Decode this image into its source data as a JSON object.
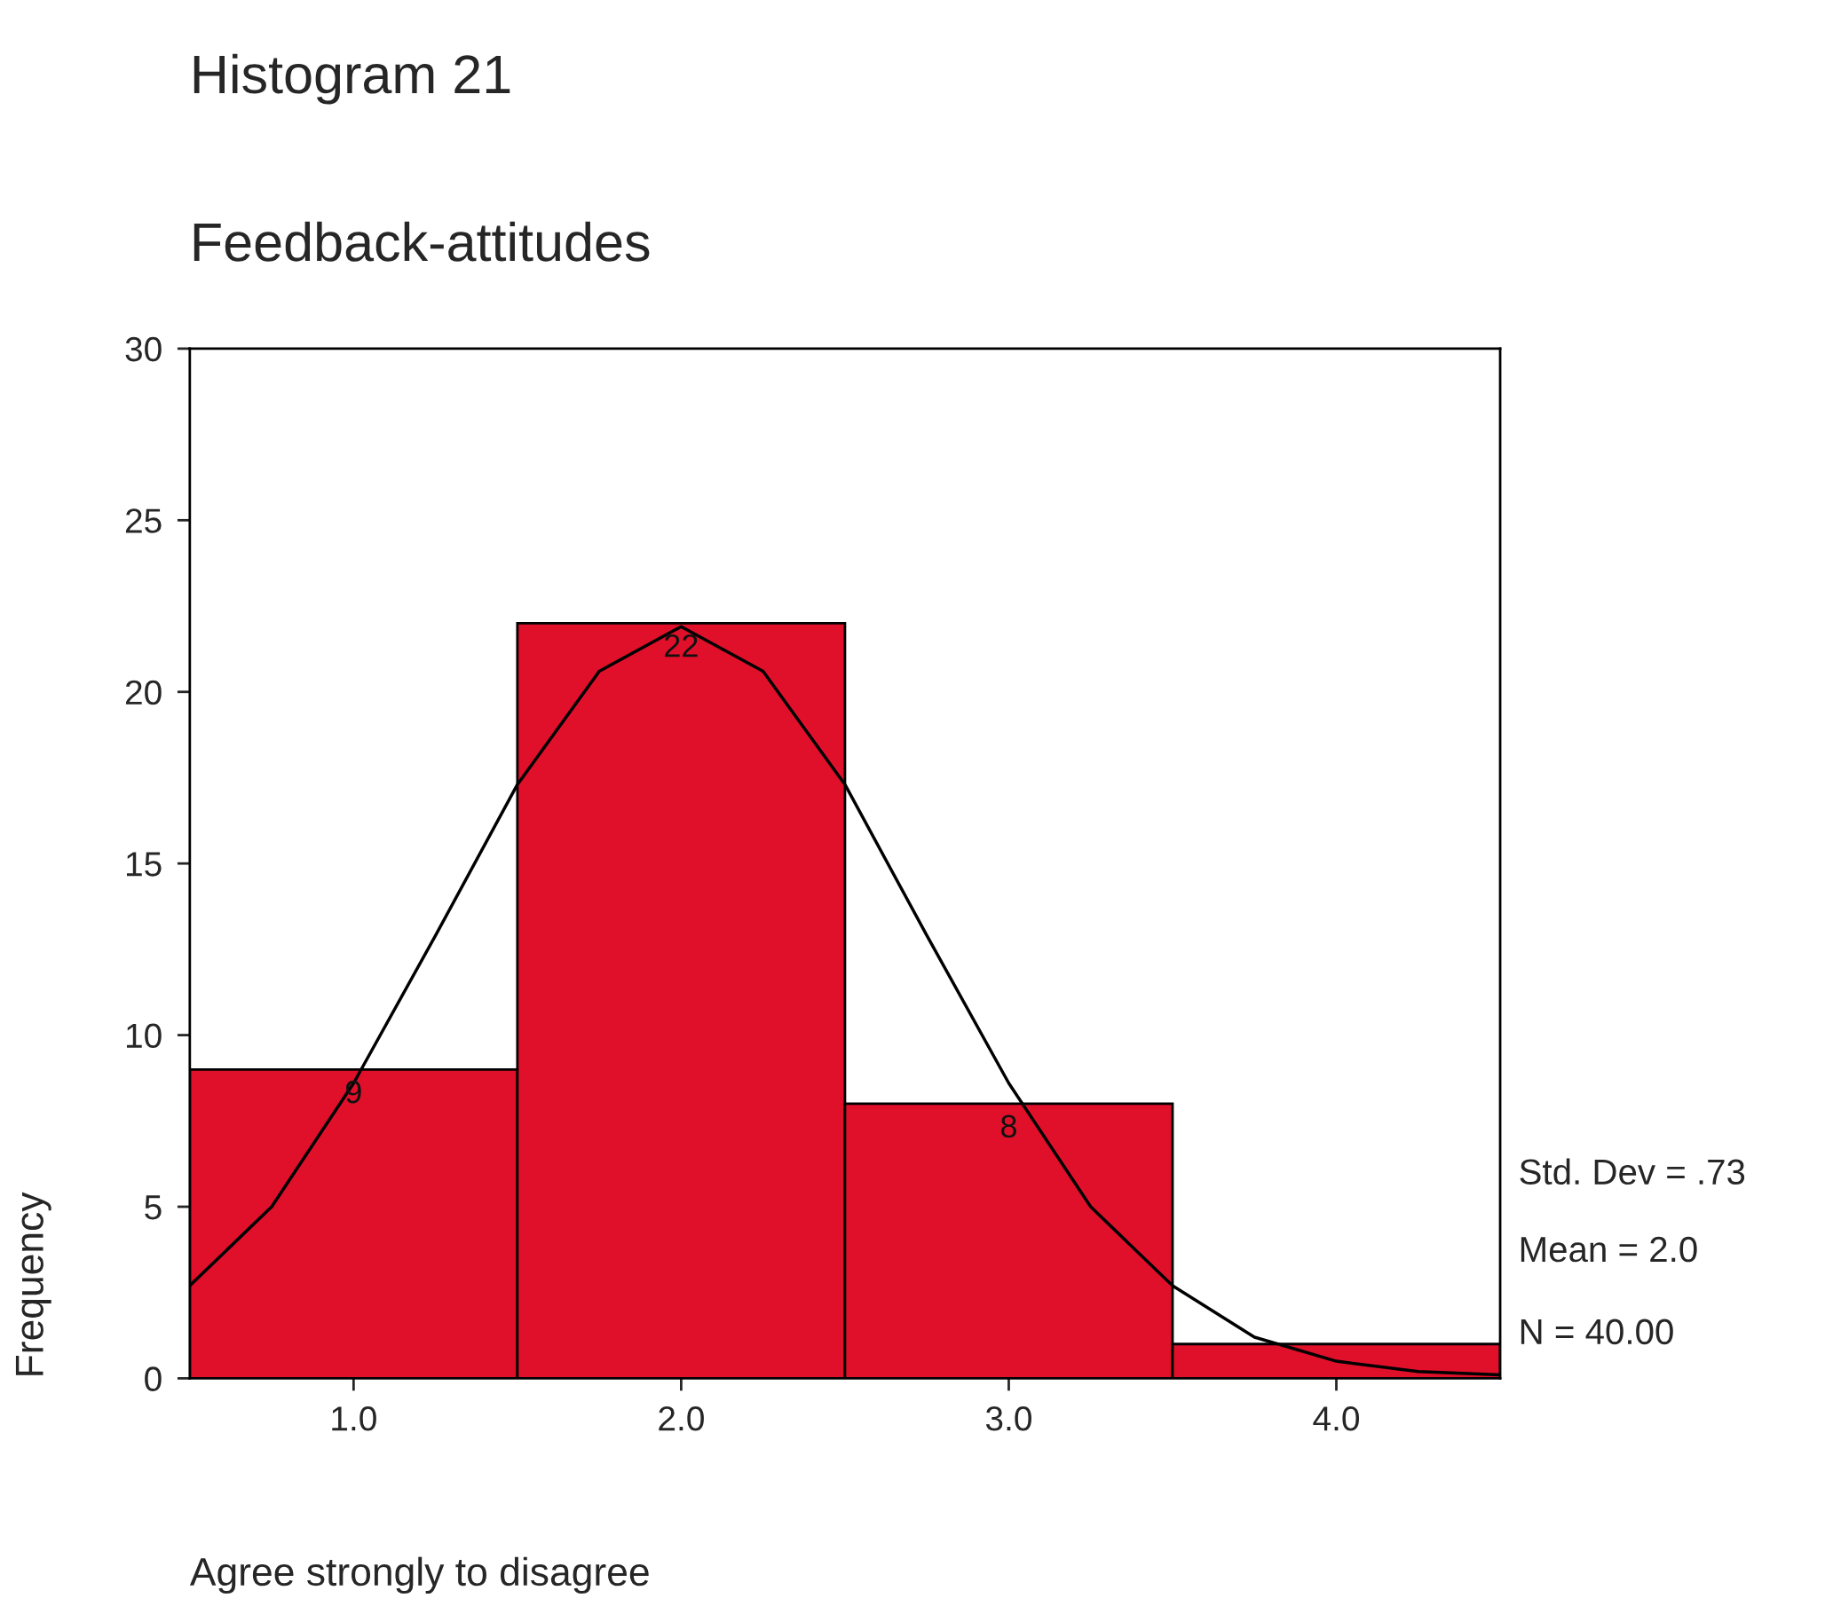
{
  "chart_data": {
    "type": "histogram",
    "title": "Histogram 21",
    "subtitle": "Feedback-attitudes",
    "xlabel": "Agree strongly to disagree",
    "ylabel": "Frequency",
    "bins": [
      0.5,
      1.5,
      2.5,
      3.5,
      4.5
    ],
    "values": [
      9,
      22,
      8,
      1
    ],
    "color": "#e0102a",
    "value_labels": [
      "9",
      "22",
      "8",
      null
    ],
    "series": [
      {
        "type": "line",
        "color": "#000000",
        "x": [
          0.5,
          0.75,
          1.0,
          1.25,
          1.5,
          1.75,
          2.0,
          2.25,
          2.5,
          2.75,
          3.0,
          3.25,
          3.5,
          3.75,
          4.0,
          4.25,
          4.5
        ],
        "values": [
          2.7,
          5.0,
          8.6,
          12.9,
          17.3,
          20.6,
          21.9,
          20.6,
          17.3,
          12.9,
          8.6,
          5.0,
          2.7,
          1.2,
          0.5,
          0.2,
          0.1
        ]
      }
    ],
    "xlim": [
      0.5,
      4.5
    ],
    "ylim": [
      0,
      30
    ],
    "xticks": [
      {
        "value": 1,
        "label": "1.0"
      },
      {
        "value": 2,
        "label": "2.0"
      },
      {
        "value": 3,
        "label": "3.0"
      },
      {
        "value": 4,
        "label": "4.0"
      }
    ],
    "yticks": [
      0,
      5,
      10,
      15,
      20,
      25,
      30
    ],
    "annotations": [
      "Std. Dev = .73",
      "Mean = 2.0",
      "N = 40.00"
    ],
    "grid": false,
    "legend": false
  }
}
